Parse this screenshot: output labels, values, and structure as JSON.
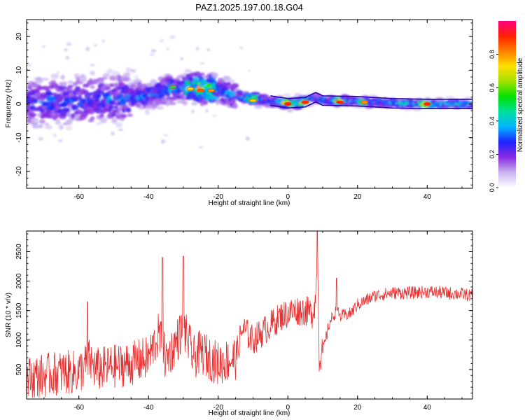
{
  "title": "PAZ1.2025.197.00.18.G04",
  "chart_data": [
    {
      "type": "heatmap",
      "xlabel": "Height of straight line (km)",
      "ylabel": "Frequency (Hz)",
      "xlim": [
        -75,
        53
      ],
      "ylim": [
        -25,
        25
      ],
      "xticks": [
        -60,
        -40,
        -20,
        0,
        20,
        40
      ],
      "yticks": [
        -20,
        -10,
        0,
        10,
        20
      ],
      "colorbar": {
        "label": "Normalized spectral amplitude",
        "range": [
          0,
          1
        ],
        "ticks": [
          0.0,
          0.2,
          0.4,
          0.6,
          0.8
        ],
        "tick_labels": [
          "0.0",
          "0.2",
          "0.4",
          "0.6",
          "0.8"
        ],
        "colormap": [
          "#ffffff",
          "#c8b4f0",
          "#8a2be2",
          "#2020ff",
          "#00b4ff",
          "#00e0a0",
          "#00e000",
          "#a0e000",
          "#ffe000",
          "#ff8000",
          "#ff2000",
          "#ff0080"
        ]
      },
      "ridge_center_hz": [
        {
          "x": -70,
          "y": 0.5
        },
        {
          "x": -60,
          "y": 1.0
        },
        {
          "x": -50,
          "y": 1.5
        },
        {
          "x": -40,
          "y": 2.5
        },
        {
          "x": -35,
          "y": 4.0
        },
        {
          "x": -30,
          "y": 4.8
        },
        {
          "x": -25,
          "y": 4.5
        },
        {
          "x": -20,
          "y": 4.0
        },
        {
          "x": -15,
          "y": 2.5
        },
        {
          "x": -10,
          "y": 1.5
        },
        {
          "x": -5,
          "y": 1.0
        },
        {
          "x": 0,
          "y": 0.2
        },
        {
          "x": 5,
          "y": 0.5
        },
        {
          "x": 8,
          "y": 2.0
        },
        {
          "x": 10,
          "y": 1.0
        },
        {
          "x": 20,
          "y": 0.8
        },
        {
          "x": 30,
          "y": 0.2
        },
        {
          "x": 40,
          "y": 0.0
        },
        {
          "x": 52,
          "y": 0.0
        }
      ],
      "peak_regions": [
        {
          "x": -33,
          "y": 5.0,
          "amplitude": 0.5
        },
        {
          "x": -28,
          "y": 4.5,
          "amplitude": 0.7
        },
        {
          "x": -25,
          "y": 4.0,
          "amplitude": 0.85
        },
        {
          "x": -22,
          "y": 4.0,
          "amplitude": 0.8
        },
        {
          "x": -10,
          "y": 1.0,
          "amplitude": 0.75
        },
        {
          "x": 0,
          "y": 0.0,
          "amplitude": 0.9
        },
        {
          "x": 5,
          "y": 0.5,
          "amplitude": 0.9
        },
        {
          "x": 15,
          "y": 0.5,
          "amplitude": 0.9
        },
        {
          "x": 22,
          "y": 0.5,
          "amplitude": 0.8
        },
        {
          "x": 40,
          "y": 0.0,
          "amplitude": 0.9
        }
      ]
    },
    {
      "type": "line",
      "xlabel": "Height of straight line (km)",
      "ylabel": "SNR (10 * v/v)",
      "xlim": [
        -75,
        53
      ],
      "ylim": [
        0,
        2850
      ],
      "xticks": [
        -60,
        -40,
        -20,
        0,
        20,
        40
      ],
      "yticks": [
        500,
        1000,
        1500,
        2000,
        2500
      ],
      "color": "#e83030",
      "series": [
        {
          "name": "",
          "x": [
            -75,
            -70,
            -65,
            -60,
            -57,
            -55,
            -50,
            -45,
            -40,
            -37,
            -35,
            -30,
            -27,
            -25,
            -20,
            -15,
            -13,
            -10,
            -5,
            -2,
            0,
            2,
            5,
            7,
            8,
            8.5,
            9,
            10,
            12,
            14,
            15,
            18,
            20,
            25,
            30,
            35,
            40,
            45,
            50,
            53
          ],
          "values": [
            350,
            400,
            450,
            450,
            650,
            500,
            550,
            600,
            700,
            1100,
            650,
            1200,
            700,
            800,
            600,
            700,
            1200,
            1000,
            1250,
            1400,
            1450,
            1500,
            1500,
            1450,
            1700,
            2700,
            700,
            800,
            1300,
            1500,
            1400,
            1450,
            1600,
            1750,
            1800,
            1800,
            1820,
            1800,
            1780,
            1750
          ]
        }
      ],
      "spikes": [
        {
          "x": -57.5,
          "y": 1650
        },
        {
          "x": -36,
          "y": 2400
        },
        {
          "x": -30,
          "y": 2420
        },
        {
          "x": 8.5,
          "y": 2850
        },
        {
          "x": 14,
          "y": 2050
        }
      ]
    }
  ]
}
